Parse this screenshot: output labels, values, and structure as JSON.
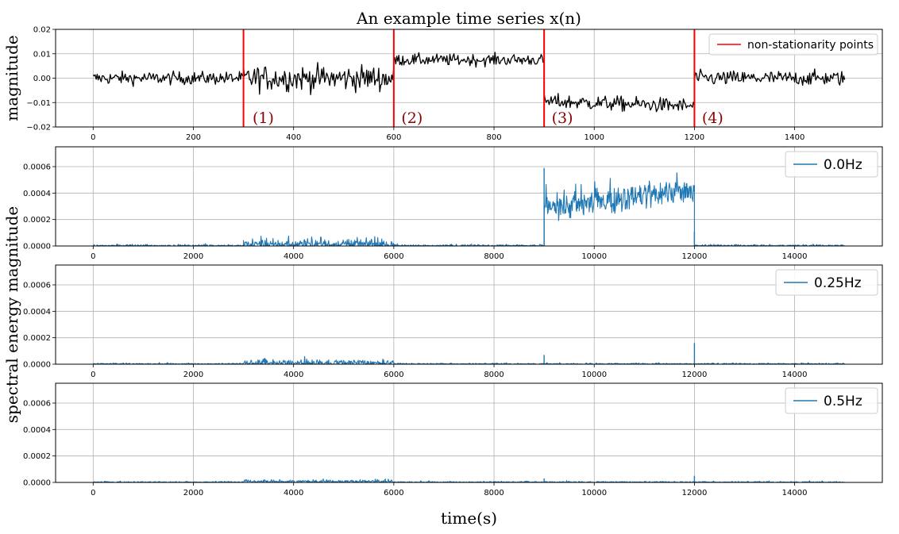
{
  "figure": {
    "ylabel_top": "magnitude",
    "ylabel_shared": "spectral energy magnitude",
    "xlabel": "time(s)"
  },
  "chart_data": [
    {
      "type": "line",
      "title": "An example time series x(n)",
      "xlabel": "",
      "ylabel": "magnitude",
      "xlim": [
        -75,
        1575
      ],
      "ylim": [
        -0.02,
        0.02
      ],
      "xticks": [
        "0",
        "200",
        "400",
        "600",
        "800",
        "1000",
        "1200",
        "1400"
      ],
      "yticks": [
        "−0.02",
        "−0.01",
        "0.00",
        "0.01",
        "0.02"
      ],
      "grid": true,
      "legend_position": "top-right",
      "series": [
        {
          "color": "#000000",
          "segments": [
            {
              "x_start": 0,
              "x_end": 300,
              "mean": 0.0,
              "noise": 0.0013
            },
            {
              "x_start": 300,
              "x_end": 600,
              "mean": 0.0,
              "noise": 0.0026
            },
            {
              "x_start": 600,
              "x_end": 900,
              "mean": 0.0075,
              "noise": 0.0012
            },
            {
              "x_start": 900,
              "x_end": 1200,
              "mean": -0.0095,
              "noise": 0.0015,
              "slope_end": -0.0115
            },
            {
              "x_start": 1200,
              "x_end": 1500,
              "mean": 0.0,
              "noise": 0.0015
            }
          ]
        }
      ],
      "vlines": {
        "name": "non-stationarity points",
        "color": "#ff0000",
        "x": [
          300,
          600,
          900,
          1200
        ]
      },
      "annotations": [
        {
          "text": "(1)",
          "x": 318,
          "y": -0.0165
        },
        {
          "text": "(2)",
          "x": 615,
          "y": -0.0165
        },
        {
          "text": "(3)",
          "x": 915,
          "y": -0.0165
        },
        {
          "text": "(4)",
          "x": 1215,
          "y": -0.0165
        }
      ]
    },
    {
      "type": "line",
      "xlim": [
        -750,
        15750
      ],
      "ylim": [
        0,
        0.00075
      ],
      "xticks": [
        "0",
        "2000",
        "4000",
        "6000",
        "8000",
        "10000",
        "12000",
        "14000"
      ],
      "yticks": [
        "0.0000",
        "0.0002",
        "0.0004",
        "0.0006"
      ],
      "grid": true,
      "legend_position": "top-right",
      "series": [
        {
          "name": "0.0Hz",
          "color": "#1f77b4",
          "segments": [
            {
              "x_start": 0,
              "x_end": 3000,
              "level": 2e-06,
              "amp": 6e-06
            },
            {
              "x_start": 3000,
              "x_end": 6000,
              "level": 1e-05,
              "amp": 3e-05
            },
            {
              "x_start": 6000,
              "x_end": 9000,
              "level": 2e-06,
              "amp": 6e-06
            },
            {
              "x_start": 9000,
              "x_end": 12000,
              "level": 0.00028,
              "level_end": 0.00043,
              "amp": 8e-05
            },
            {
              "x_start": 12000,
              "x_end": 15000,
              "level": 2e-06,
              "amp": 6e-06
            }
          ],
          "spikes": [
            {
              "x": 9000,
              "y": 0.00059
            },
            {
              "x": 12000,
              "y": 0.00011
            }
          ]
        }
      ]
    },
    {
      "type": "line",
      "xlim": [
        -750,
        15750
      ],
      "ylim": [
        0,
        0.00075
      ],
      "xticks": [
        "0",
        "2000",
        "4000",
        "6000",
        "8000",
        "10000",
        "12000",
        "14000"
      ],
      "yticks": [
        "0.0000",
        "0.0002",
        "0.0004",
        "0.0006"
      ],
      "grid": true,
      "legend_position": "top-right",
      "series": [
        {
          "name": "0.25Hz",
          "color": "#1f77b4",
          "segments": [
            {
              "x_start": 0,
              "x_end": 3000,
              "level": 2e-06,
              "amp": 4e-06
            },
            {
              "x_start": 3000,
              "x_end": 6000,
              "level": 8e-06,
              "amp": 1.8e-05
            },
            {
              "x_start": 6000,
              "x_end": 15000,
              "level": 2e-06,
              "amp": 4e-06
            }
          ],
          "spikes": [
            {
              "x": 9000,
              "y": 7e-05
            },
            {
              "x": 12000,
              "y": 0.00016
            }
          ]
        }
      ]
    },
    {
      "type": "line",
      "xlim": [
        -750,
        15750
      ],
      "ylim": [
        0,
        0.00075
      ],
      "xticks": [
        "0",
        "2000",
        "4000",
        "6000",
        "8000",
        "10000",
        "12000",
        "14000"
      ],
      "yticks": [
        "0.0000",
        "0.0002",
        "0.0004",
        "0.0006"
      ],
      "grid": true,
      "legend_position": "top-right",
      "series": [
        {
          "name": "0.5Hz",
          "color": "#1f77b4",
          "segments": [
            {
              "x_start": 0,
              "x_end": 3000,
              "level": 2e-06,
              "amp": 4e-06
            },
            {
              "x_start": 3000,
              "x_end": 6000,
              "level": 6e-06,
              "amp": 1e-05
            },
            {
              "x_start": 6000,
              "x_end": 15000,
              "level": 2e-06,
              "amp": 4e-06
            }
          ],
          "spikes": [
            {
              "x": 9000,
              "y": 3e-05
            },
            {
              "x": 12000,
              "y": 5e-05
            }
          ]
        }
      ]
    }
  ]
}
